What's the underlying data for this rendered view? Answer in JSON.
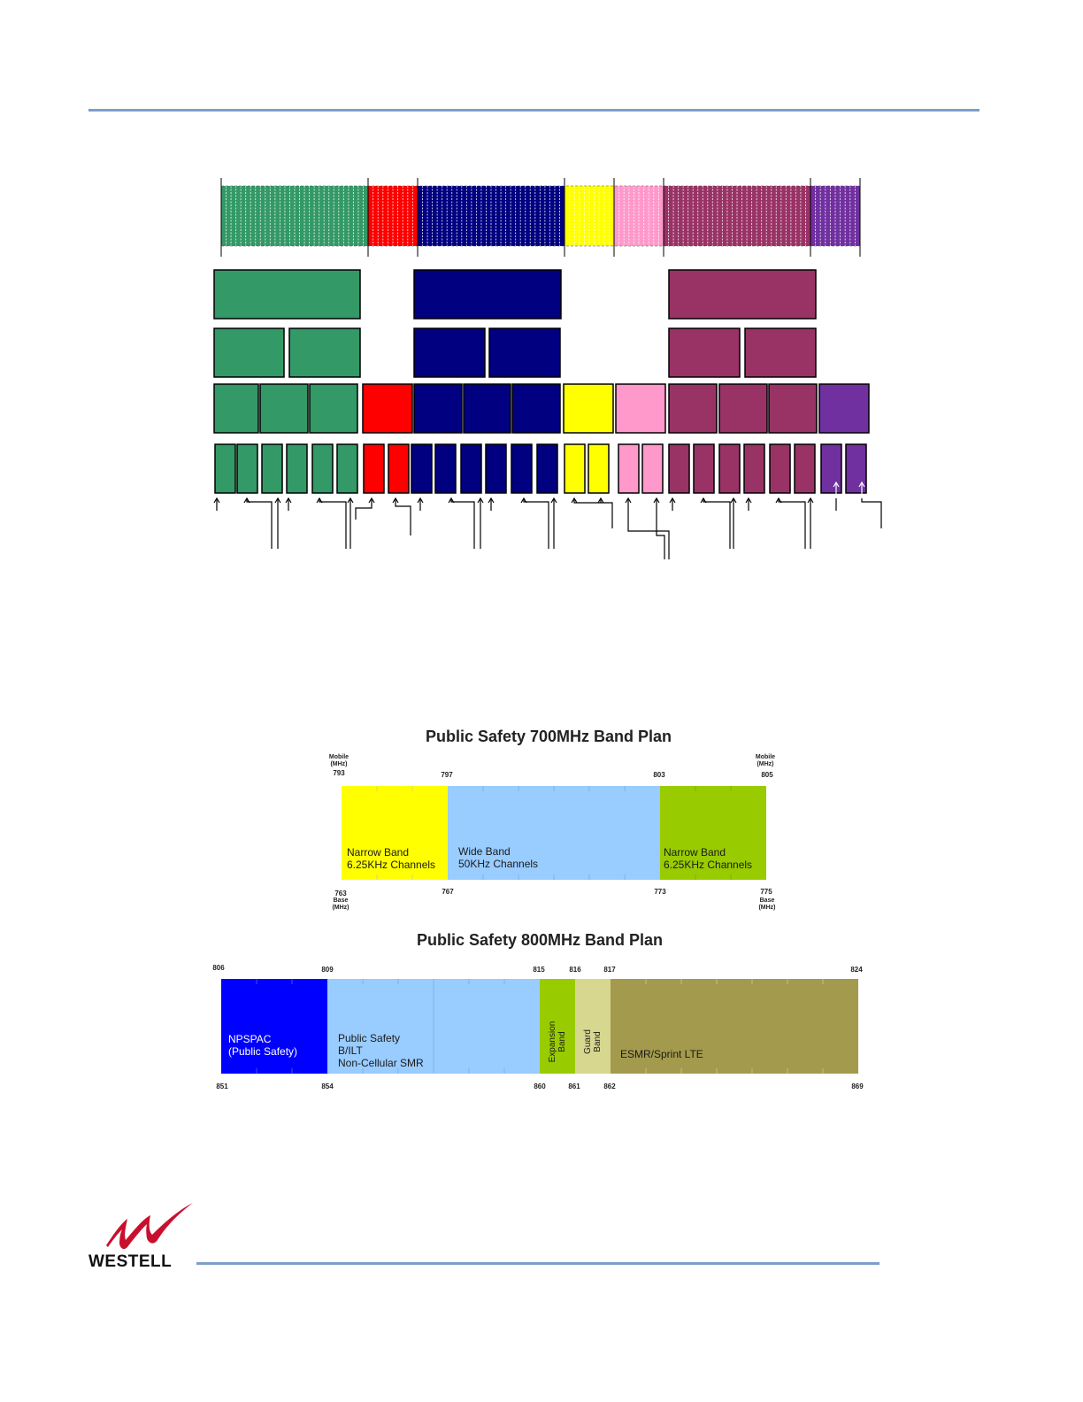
{
  "colors": {
    "green": "#339966",
    "red": "#ff0000",
    "navy": "#000080",
    "yellow": "#ffff00",
    "pink": "#ff99cc",
    "maroon": "#993366",
    "purple": "#7030a0",
    "rule": "#7b9fcb"
  },
  "channel_diagram": {
    "segments": [
      {
        "color": "#339966",
        "stripes": 30
      },
      {
        "color": "#ff0000",
        "stripes": 10
      },
      {
        "color": "#000080",
        "stripes": 30
      },
      {
        "color": "#ffff00",
        "stripes": 10
      },
      {
        "color": "#ff99cc",
        "stripes": 10
      },
      {
        "color": "#993366",
        "stripes": 30
      },
      {
        "color": "#7030a0",
        "stripes": 10
      }
    ]
  },
  "plan700": {
    "title": "Public Safety 700MHz Band Plan",
    "mobile_label_left": "Mobile\n(MHz)",
    "mobile_label_right": "Mobile\n(MHz)",
    "base_label_left": "Base\n(MHz)",
    "base_label_right": "Base\n(MHz)",
    "top_ticks": [
      "793",
      "797",
      "803",
      "805"
    ],
    "bottom_ticks": [
      "763",
      "767",
      "773",
      "775"
    ],
    "bands": [
      {
        "label": "Narrow Band\n6.25KHz Channels",
        "color": "#ffff00",
        "mhz_start": 793,
        "mhz_end": 797
      },
      {
        "label": "Wide Band\n50KHz Channels",
        "color": "#99ccff",
        "mhz_start": 797,
        "mhz_end": 803
      },
      {
        "label": "Narrow Band\n6.25KHz Channels",
        "color": "#99cc00",
        "mhz_start": 803,
        "mhz_end": 805
      }
    ]
  },
  "plan800": {
    "title": "Public Safety 800MHz Band Plan",
    "top_ticks": [
      "806",
      "809",
      "815",
      "816",
      "817",
      "824"
    ],
    "bottom_ticks": [
      "851",
      "854",
      "860",
      "861",
      "862",
      "869"
    ],
    "bands": [
      {
        "label": "NPSPAC\n(Public Safety)",
        "color": "#0000ff",
        "text_color": "#ffffff",
        "mhz_start": 806,
        "mhz_end": 809
      },
      {
        "label": "Public Safety\nB/ILT\nNon-Cellular SMR",
        "color": "#99ccff",
        "text_color": "#1a1a1a",
        "mhz_start": 809,
        "mhz_end": 815
      },
      {
        "label": "Expansion\nBand",
        "color": "#99cc00",
        "text_color": "#1a1a1a",
        "mhz_start": 815,
        "mhz_end": 816
      },
      {
        "label": "Guard\nBand",
        "color": "#d7d78f",
        "text_color": "#1a1a1a",
        "mhz_start": 816,
        "mhz_end": 817
      },
      {
        "label": "ESMR/Sprint LTE",
        "color": "#a39a4d",
        "text_color": "#1a1a1a",
        "mhz_start": 817,
        "mhz_end": 824
      }
    ]
  },
  "footer": {
    "logo_text": "WESTELL"
  }
}
